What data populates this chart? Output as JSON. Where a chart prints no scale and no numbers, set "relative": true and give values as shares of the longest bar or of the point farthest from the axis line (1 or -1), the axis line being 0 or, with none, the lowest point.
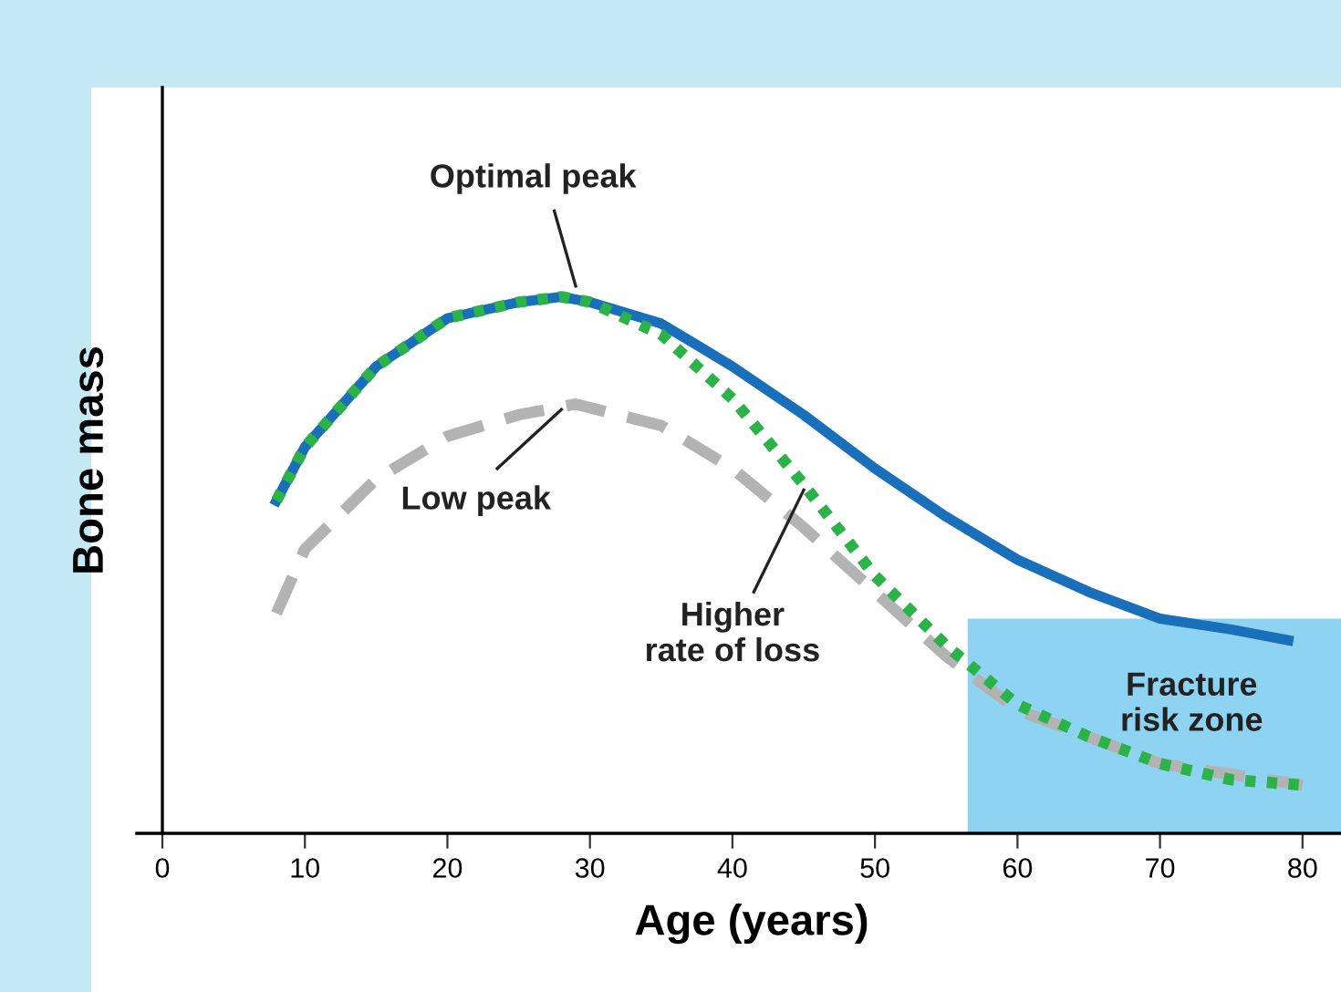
{
  "chart_data": {
    "type": "line",
    "relative": true,
    "xlabel": "Age (years)",
    "ylabel": "Bone mass",
    "xlim": [
      0,
      82.7
    ],
    "xticks": [
      0,
      10,
      20,
      30,
      40,
      50,
      60,
      70,
      80
    ],
    "tick_labels": "x",
    "grid": false,
    "series": [
      {
        "color": "#b3b3b3",
        "line_style": "dashed",
        "x": [
          8,
          10,
          15,
          20,
          25,
          29,
          35,
          40,
          45,
          50,
          55,
          60,
          65,
          70,
          75,
          80
        ],
        "values": [
          0.41,
          0.53,
          0.66,
          0.74,
          0.78,
          0.8,
          0.76,
          0.68,
          0.57,
          0.45,
          0.33,
          0.23,
          0.18,
          0.13,
          0.11,
          0.09
        ]
      },
      {
        "color": "#1a6fba",
        "line_style": "solid",
        "x": [
          8,
          10,
          15,
          20,
          25,
          28,
          30,
          35,
          40,
          45,
          50,
          55,
          60,
          65,
          70,
          75,
          79
        ],
        "values": [
          0.62,
          0.72,
          0.87,
          0.96,
          0.99,
          1.0,
          0.99,
          0.95,
          0.87,
          0.78,
          0.68,
          0.59,
          0.51,
          0.45,
          0.4,
          0.38,
          0.36
        ]
      },
      {
        "color": "#2bb34a",
        "line_style": "dotted",
        "x": [
          8,
          10,
          15,
          20,
          25,
          28,
          30,
          35,
          40,
          45,
          50,
          55,
          60,
          65,
          70,
          75,
          80
        ],
        "values": [
          0.62,
          0.72,
          0.87,
          0.96,
          0.99,
          1.0,
          0.99,
          0.93,
          0.81,
          0.65,
          0.48,
          0.35,
          0.24,
          0.18,
          0.13,
          0.1,
          0.09
        ]
      }
    ],
    "bands": [
      {
        "axis": "x",
        "from": 56.5,
        "to": 82.7,
        "label": "Fracture\nrisk zone",
        "color": "#8fd3f2"
      }
    ],
    "annotations": [
      "Optimal peak",
      "Low peak",
      "Higher\nrate of loss"
    ]
  }
}
